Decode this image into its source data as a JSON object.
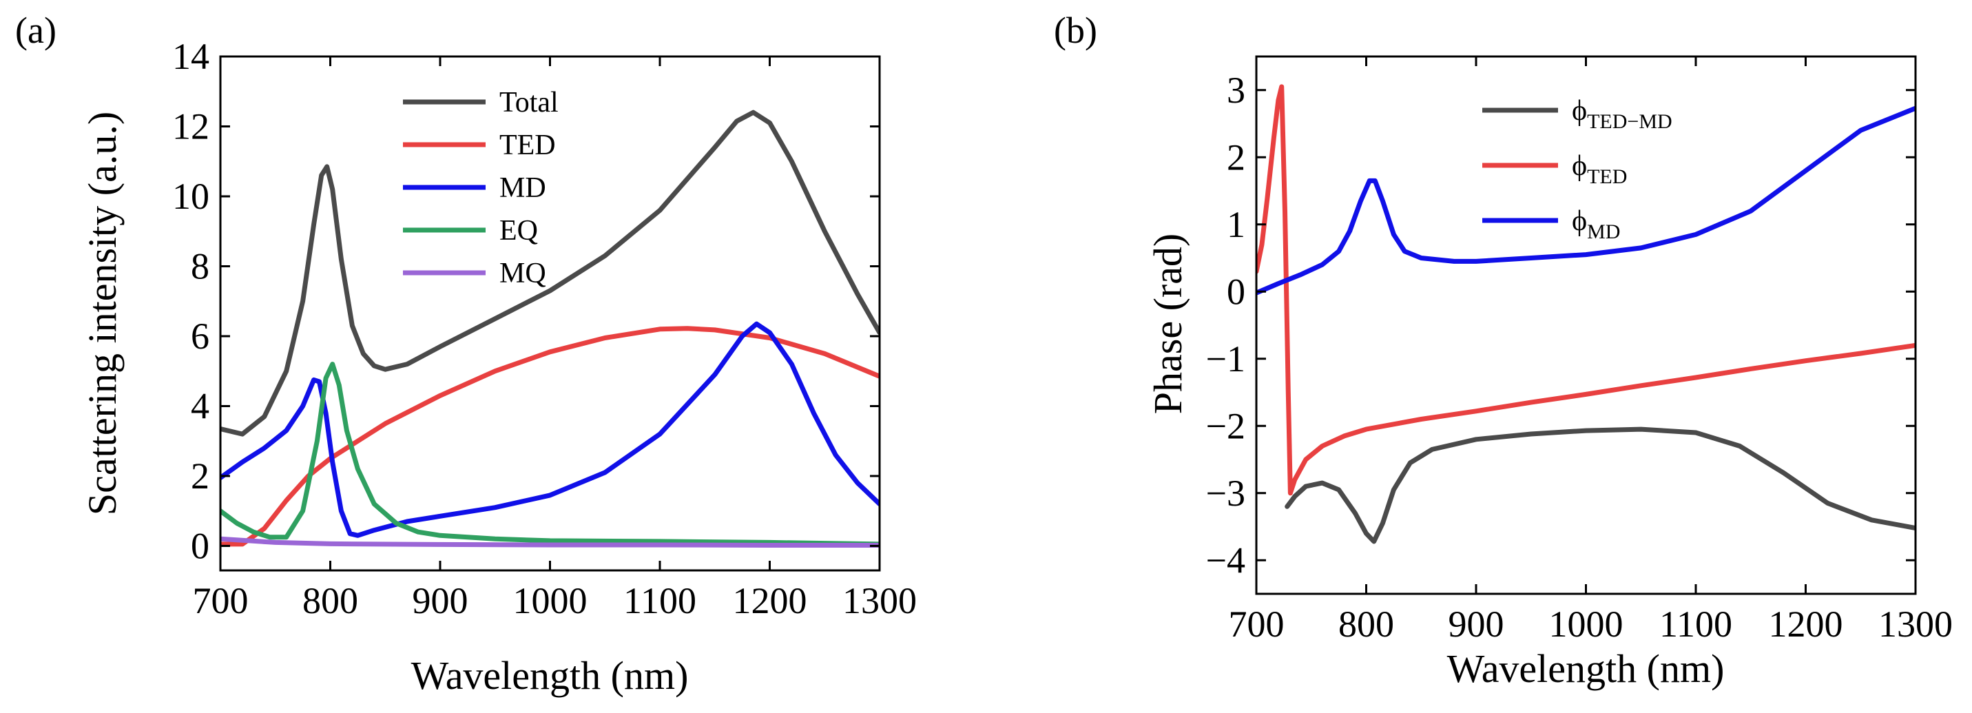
{
  "chart_data": [
    {
      "panel": "(a)",
      "type": "line",
      "xlabel": "Wavelength (nm)",
      "ylabel": "Scattering intensity (a.u.)",
      "xlim": [
        700,
        1300
      ],
      "ylim": [
        -0.7,
        14
      ],
      "xticks": [
        700,
        800,
        900,
        1000,
        1100,
        1200,
        1300
      ],
      "yticks": [
        0,
        2,
        4,
        6,
        8,
        10,
        12,
        14
      ],
      "legend_position": "top-center",
      "series": [
        {
          "name": "Total",
          "color": "#4a4a4a",
          "points": [
            [
              700,
              3.35
            ],
            [
              720,
              3.2
            ],
            [
              740,
              3.7
            ],
            [
              760,
              5.0
            ],
            [
              775,
              7.0
            ],
            [
              785,
              9.2
            ],
            [
              792,
              10.6
            ],
            [
              797,
              10.85
            ],
            [
              802,
              10.2
            ],
            [
              810,
              8.2
            ],
            [
              820,
              6.3
            ],
            [
              830,
              5.5
            ],
            [
              840,
              5.15
            ],
            [
              850,
              5.05
            ],
            [
              870,
              5.2
            ],
            [
              900,
              5.7
            ],
            [
              950,
              6.5
            ],
            [
              1000,
              7.3
            ],
            [
              1050,
              8.3
            ],
            [
              1100,
              9.6
            ],
            [
              1150,
              11.4
            ],
            [
              1170,
              12.15
            ],
            [
              1185,
              12.4
            ],
            [
              1200,
              12.1
            ],
            [
              1220,
              11.0
            ],
            [
              1250,
              9.0
            ],
            [
              1280,
              7.2
            ],
            [
              1300,
              6.1
            ]
          ]
        },
        {
          "name": "TED",
          "color": "#e84040",
          "points": [
            [
              700,
              0.05
            ],
            [
              720,
              0.05
            ],
            [
              740,
              0.5
            ],
            [
              760,
              1.3
            ],
            [
              780,
              2.0
            ],
            [
              800,
              2.5
            ],
            [
              850,
              3.5
            ],
            [
              900,
              4.3
            ],
            [
              950,
              5.0
            ],
            [
              1000,
              5.55
            ],
            [
              1050,
              5.95
            ],
            [
              1100,
              6.2
            ],
            [
              1125,
              6.22
            ],
            [
              1150,
              6.18
            ],
            [
              1200,
              5.95
            ],
            [
              1250,
              5.5
            ],
            [
              1300,
              4.85
            ]
          ]
        },
        {
          "name": "MD",
          "color": "#1010e8",
          "points": [
            [
              700,
              1.95
            ],
            [
              720,
              2.4
            ],
            [
              740,
              2.8
            ],
            [
              760,
              3.3
            ],
            [
              775,
              4.0
            ],
            [
              785,
              4.75
            ],
            [
              790,
              4.7
            ],
            [
              796,
              3.8
            ],
            [
              802,
              2.4
            ],
            [
              810,
              1.0
            ],
            [
              818,
              0.35
            ],
            [
              825,
              0.3
            ],
            [
              840,
              0.45
            ],
            [
              870,
              0.7
            ],
            [
              900,
              0.85
            ],
            [
              950,
              1.1
            ],
            [
              1000,
              1.45
            ],
            [
              1050,
              2.1
            ],
            [
              1100,
              3.2
            ],
            [
              1150,
              4.9
            ],
            [
              1175,
              6.0
            ],
            [
              1188,
              6.35
            ],
            [
              1200,
              6.1
            ],
            [
              1220,
              5.2
            ],
            [
              1240,
              3.8
            ],
            [
              1260,
              2.6
            ],
            [
              1280,
              1.8
            ],
            [
              1300,
              1.2
            ]
          ]
        },
        {
          "name": "EQ",
          "color": "#2fa060",
          "points": [
            [
              700,
              1.0
            ],
            [
              715,
              0.65
            ],
            [
              730,
              0.4
            ],
            [
              745,
              0.25
            ],
            [
              760,
              0.25
            ],
            [
              775,
              1.0
            ],
            [
              788,
              3.0
            ],
            [
              796,
              4.8
            ],
            [
              802,
              5.2
            ],
            [
              808,
              4.6
            ],
            [
              815,
              3.3
            ],
            [
              825,
              2.2
            ],
            [
              840,
              1.2
            ],
            [
              860,
              0.65
            ],
            [
              880,
              0.4
            ],
            [
              900,
              0.3
            ],
            [
              950,
              0.2
            ],
            [
              1000,
              0.15
            ],
            [
              1100,
              0.13
            ],
            [
              1200,
              0.1
            ],
            [
              1300,
              0.05
            ]
          ]
        },
        {
          "name": "MQ",
          "color": "#9a66d6",
          "points": [
            [
              700,
              0.2
            ],
            [
              750,
              0.1
            ],
            [
              800,
              0.06
            ],
            [
              900,
              0.04
            ],
            [
              1000,
              0.03
            ],
            [
              1100,
              0.03
            ],
            [
              1200,
              0.02
            ],
            [
              1300,
              0.02
            ]
          ]
        }
      ]
    },
    {
      "panel": "(b)",
      "type": "line",
      "xlabel": "Wavelength (nm)",
      "ylabel": "Phase (rad)",
      "xlim": [
        700,
        1300
      ],
      "ylim": [
        -4.5,
        3.5
      ],
      "xticks": [
        700,
        800,
        900,
        1000,
        1100,
        1200,
        1300
      ],
      "yticks": [
        -4,
        -3,
        -2,
        -1,
        0,
        1,
        2,
        3
      ],
      "legend_position": "top-center",
      "series": [
        {
          "name": "ϕ",
          "subscript": "TED−MD",
          "color": "#4a4a4a",
          "points": [
            [
              728,
              -3.2
            ],
            [
              735,
              -3.05
            ],
            [
              745,
              -2.9
            ],
            [
              760,
              -2.85
            ],
            [
              775,
              -2.95
            ],
            [
              790,
              -3.3
            ],
            [
              800,
              -3.6
            ],
            [
              807,
              -3.72
            ],
            [
              815,
              -3.45
            ],
            [
              825,
              -2.95
            ],
            [
              840,
              -2.55
            ],
            [
              860,
              -2.35
            ],
            [
              900,
              -2.2
            ],
            [
              950,
              -2.12
            ],
            [
              1000,
              -2.07
            ],
            [
              1050,
              -2.05
            ],
            [
              1100,
              -2.1
            ],
            [
              1140,
              -2.3
            ],
            [
              1180,
              -2.7
            ],
            [
              1220,
              -3.15
            ],
            [
              1260,
              -3.4
            ],
            [
              1300,
              -3.52
            ]
          ]
        },
        {
          "name": "ϕ",
          "subscript": "TED",
          "color": "#e84040",
          "points": [
            [
              700,
              0.3
            ],
            [
              705,
              0.7
            ],
            [
              710,
              1.4
            ],
            [
              716,
              2.3
            ],
            [
              720,
              2.85
            ],
            [
              723,
              3.05
            ],
            [
              726,
              1.2
            ],
            [
              729,
              -1.5
            ],
            [
              731,
              -3.0
            ],
            [
              735,
              -2.8
            ],
            [
              745,
              -2.5
            ],
            [
              760,
              -2.3
            ],
            [
              780,
              -2.15
            ],
            [
              800,
              -2.05
            ],
            [
              850,
              -1.9
            ],
            [
              900,
              -1.78
            ],
            [
              950,
              -1.65
            ],
            [
              1000,
              -1.53
            ],
            [
              1050,
              -1.4
            ],
            [
              1100,
              -1.28
            ],
            [
              1150,
              -1.15
            ],
            [
              1200,
              -1.03
            ],
            [
              1250,
              -0.92
            ],
            [
              1300,
              -0.8
            ]
          ]
        },
        {
          "name": "ϕ",
          "subscript": "MD",
          "color": "#1010e8",
          "points": [
            [
              700,
              -0.02
            ],
            [
              720,
              0.12
            ],
            [
              740,
              0.25
            ],
            [
              760,
              0.4
            ],
            [
              775,
              0.6
            ],
            [
              785,
              0.9
            ],
            [
              795,
              1.35
            ],
            [
              803,
              1.65
            ],
            [
              808,
              1.65
            ],
            [
              815,
              1.35
            ],
            [
              825,
              0.85
            ],
            [
              835,
              0.6
            ],
            [
              850,
              0.5
            ],
            [
              880,
              0.45
            ],
            [
              900,
              0.45
            ],
            [
              950,
              0.5
            ],
            [
              1000,
              0.55
            ],
            [
              1050,
              0.65
            ],
            [
              1100,
              0.85
            ],
            [
              1150,
              1.2
            ],
            [
              1200,
              1.8
            ],
            [
              1250,
              2.4
            ],
            [
              1300,
              2.73
            ]
          ]
        }
      ]
    }
  ]
}
